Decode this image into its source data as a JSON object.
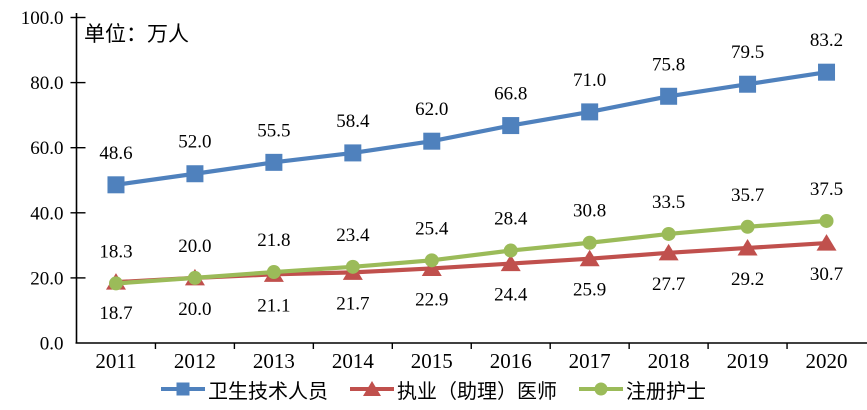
{
  "chart_data": {
    "type": "line",
    "title": "",
    "unit_label": "单位：万人",
    "categories": [
      "2011",
      "2012",
      "2013",
      "2014",
      "2015",
      "2016",
      "2017",
      "2018",
      "2019",
      "2020"
    ],
    "xlabel": "",
    "ylabel": "",
    "ylim": [
      0,
      100
    ],
    "ytick_labels": [
      "0.0",
      "20.0",
      "40.0",
      "60.0",
      "80.0",
      "100.0"
    ],
    "grid": false,
    "value_labels_shown": true,
    "legend_position": "bottom",
    "series": [
      {
        "name": "卫生技术人员",
        "marker": "square",
        "color": "#4F81BD",
        "label_position": "above",
        "values": [
          48.6,
          52.0,
          55.5,
          58.4,
          62.0,
          66.8,
          71.0,
          75.8,
          79.5,
          83.2
        ]
      },
      {
        "name": "执业（助理）医师",
        "marker": "triangle",
        "color": "#C0504D",
        "label_position": "below",
        "values": [
          18.7,
          20.0,
          21.1,
          21.7,
          22.9,
          24.4,
          25.9,
          27.7,
          29.2,
          30.7
        ]
      },
      {
        "name": "注册护士",
        "marker": "circle",
        "color": "#9BBB59",
        "label_position": "above",
        "values": [
          18.3,
          20.0,
          21.8,
          23.4,
          25.4,
          28.4,
          30.8,
          33.5,
          35.7,
          37.5
        ]
      }
    ],
    "colors": {
      "axis": "#000000",
      "text": "#000000",
      "background": "#FFFFFF"
    }
  }
}
